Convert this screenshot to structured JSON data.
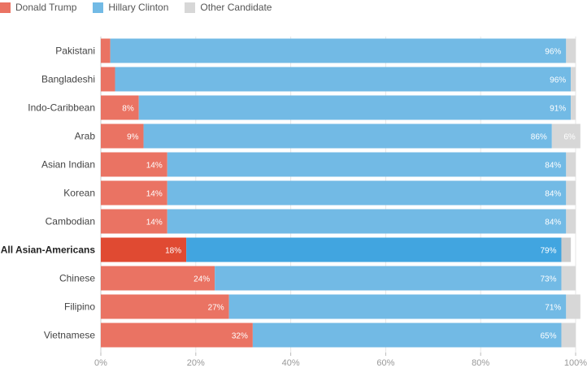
{
  "legend": [
    {
      "label": "Donald Trump",
      "color": "#ea7363"
    },
    {
      "label": "Hillary Clinton",
      "color": "#72bae5"
    },
    {
      "label": "Other Candidate",
      "color": "#d7d7d7"
    }
  ],
  "chart_data": {
    "type": "bar",
    "orientation": "horizontal",
    "stacked": true,
    "categories": [
      "Pakistani",
      "Bangladeshi",
      "Indo-Caribbean",
      "Arab",
      "Asian Indian",
      "Korean",
      "Cambodian",
      "All Asian-Americans",
      "Chinese",
      "Filipino",
      "Vietnamese"
    ],
    "highlighted_category": "All Asian-Americans",
    "series": [
      {
        "name": "Donald Trump",
        "color": "#ea7363",
        "highlight_color": "#e04a32",
        "values": [
          2,
          3,
          8,
          9,
          14,
          14,
          14,
          18,
          24,
          27,
          32
        ],
        "labels": [
          "",
          "",
          "8%",
          "9%",
          "14%",
          "14%",
          "14%",
          "18%",
          "24%",
          "27%",
          "32%"
        ]
      },
      {
        "name": "Hillary Clinton",
        "color": "#72bae5",
        "highlight_color": "#41a5e0",
        "values": [
          96,
          96,
          91,
          86,
          84,
          84,
          84,
          79,
          73,
          71,
          65
        ],
        "labels": [
          "96%",
          "96%",
          "91%",
          "86%",
          "84%",
          "84%",
          "84%",
          "79%",
          "73%",
          "71%",
          "65%"
        ]
      },
      {
        "name": "Other Candidate",
        "color": "#d7d7d7",
        "highlight_color": "#cccccc",
        "values": [
          2,
          1,
          1,
          6,
          2,
          2,
          2,
          2,
          3,
          3,
          3
        ],
        "labels": [
          "",
          "",
          "",
          "6%",
          "",
          "",
          "",
          "",
          "",
          "",
          ""
        ]
      }
    ],
    "xlim": [
      0,
      100
    ],
    "x_ticks": [
      "0%",
      "20%",
      "40%",
      "60%",
      "80%",
      "100%"
    ],
    "grid": true,
    "legend_position": "top-left"
  }
}
